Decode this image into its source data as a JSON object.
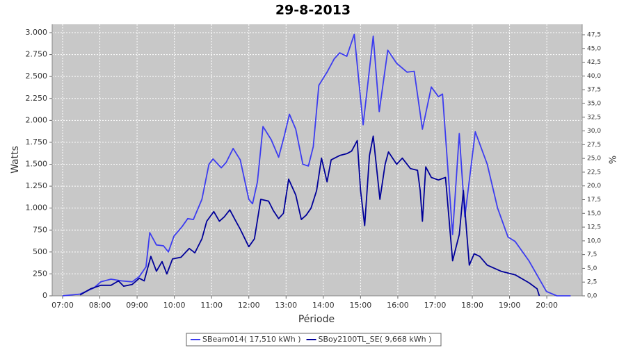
{
  "chart_data": {
    "type": "line",
    "title": "29-8-2013",
    "xlabel": "Période",
    "ylabel": "Watts",
    "y2label": "%",
    "xlim": [
      6.72,
      20.95
    ],
    "xticks": [
      {
        "value": 7,
        "label": "07:00"
      },
      {
        "value": 8,
        "label": "08:00"
      },
      {
        "value": 9,
        "label": "09:00"
      },
      {
        "value": 10,
        "label": "10:00"
      },
      {
        "value": 11,
        "label": "11:00"
      },
      {
        "value": 12,
        "label": "12:00"
      },
      {
        "value": 13,
        "label": "13:00"
      },
      {
        "value": 14,
        "label": "14:00"
      },
      {
        "value": 15,
        "label": "15:00"
      },
      {
        "value": 16,
        "label": "16:00"
      },
      {
        "value": 17,
        "label": "17:00"
      },
      {
        "value": 18,
        "label": "18:00"
      },
      {
        "value": 19,
        "label": "19:00"
      },
      {
        "value": 20,
        "label": "20:00"
      }
    ],
    "ylim": [
      0,
      3095
    ],
    "yticks": [
      0,
      250,
      500,
      750,
      {
        "value": 1000,
        "label": "1.000"
      },
      {
        "value": 1250,
        "label": "1.250"
      },
      {
        "value": 1500,
        "label": "1.500"
      },
      {
        "value": 1750,
        "label": "1.750"
      },
      {
        "value": 2000,
        "label": "2.000"
      },
      {
        "value": 2250,
        "label": "2.250"
      },
      {
        "value": 2500,
        "label": "2.500"
      },
      {
        "value": 2750,
        "label": "2.750"
      },
      {
        "value": 3000,
        "label": "3.000"
      }
    ],
    "y2lim": [
      0,
      49.4
    ],
    "y2ticks": [
      {
        "value": 0,
        "label": "0,0"
      },
      {
        "value": 2.5,
        "label": "2,5"
      },
      {
        "value": 5,
        "label": "5,0"
      },
      {
        "value": 7.5,
        "label": "7,5"
      },
      {
        "value": 10,
        "label": "10,0"
      },
      {
        "value": 12.5,
        "label": "12,5"
      },
      {
        "value": 15,
        "label": "15,0"
      },
      {
        "value": 17.5,
        "label": "17,5"
      },
      {
        "value": 20,
        "label": "20,0"
      },
      {
        "value": 22.5,
        "label": "22,5"
      },
      {
        "value": 25,
        "label": "25,0"
      },
      {
        "value": 27.5,
        "label": "27,5"
      },
      {
        "value": 30,
        "label": "30,0"
      },
      {
        "value": 32.5,
        "label": "32,5"
      },
      {
        "value": 35,
        "label": "35,0"
      },
      {
        "value": 37.5,
        "label": "37,5"
      },
      {
        "value": 40,
        "label": "40,0"
      },
      {
        "value": 42.5,
        "label": "42,5"
      },
      {
        "value": 45,
        "label": "45,0"
      },
      {
        "value": 47.5,
        "label": "47,5"
      }
    ],
    "grid": true,
    "legend": "bottom",
    "series": [
      {
        "name": "SBeam014( 17,510 kWh )",
        "color": "#3c3cf0",
        "x": [
          7.0,
          7.47,
          7.84,
          8.03,
          8.3,
          8.59,
          8.87,
          9.06,
          9.24,
          9.34,
          9.52,
          9.71,
          9.84,
          9.99,
          10.21,
          10.36,
          10.51,
          10.74,
          10.93,
          11.04,
          11.26,
          11.39,
          11.58,
          11.77,
          12.0,
          12.1,
          12.23,
          12.38,
          12.6,
          12.8,
          12.95,
          13.09,
          13.26,
          13.45,
          13.6,
          13.73,
          13.88,
          14.1,
          14.29,
          14.44,
          14.63,
          14.83,
          15.07,
          15.34,
          15.5,
          15.73,
          15.97,
          16.25,
          16.44,
          16.66,
          16.9,
          17.09,
          17.2,
          17.47,
          17.65,
          17.8,
          18.08,
          18.4,
          18.68,
          18.96,
          19.15,
          19.52,
          19.99,
          20.27,
          20.64
        ],
        "values": [
          0,
          20,
          90,
          160,
          190,
          170,
          160,
          220,
          330,
          720,
          580,
          570,
          500,
          680,
          790,
          880,
          870,
          1100,
          1500,
          1560,
          1460,
          1520,
          1680,
          1550,
          1100,
          1050,
          1300,
          1930,
          1780,
          1580,
          1820,
          2070,
          1900,
          1500,
          1480,
          1700,
          2400,
          2550,
          2700,
          2770,
          2730,
          2980,
          1950,
          2960,
          2100,
          2800,
          2650,
          2550,
          2560,
          1900,
          2380,
          2270,
          2300,
          700,
          1850,
          900,
          1870,
          1500,
          1000,
          670,
          620,
          400,
          50,
          0,
          0
        ]
      },
      {
        "name": "SBoy2100TL_SE( 9,668 kWh )",
        "color": "#000099",
        "x": [
          7.47,
          7.75,
          8.03,
          8.3,
          8.5,
          8.64,
          8.87,
          9.06,
          9.19,
          9.37,
          9.52,
          9.67,
          9.8,
          9.95,
          10.18,
          10.4,
          10.55,
          10.74,
          10.87,
          11.06,
          11.21,
          11.34,
          11.49,
          11.64,
          11.77,
          12.0,
          12.15,
          12.32,
          12.53,
          12.66,
          12.8,
          12.93,
          13.07,
          13.26,
          13.41,
          13.54,
          13.67,
          13.82,
          13.95,
          14.1,
          14.21,
          14.44,
          14.63,
          14.76,
          14.91,
          15.0,
          15.11,
          15.24,
          15.34,
          15.52,
          15.66,
          15.75,
          15.97,
          16.12,
          16.34,
          16.53,
          16.6,
          16.66,
          16.75,
          16.9,
          17.09,
          17.28,
          17.47,
          17.65,
          17.76,
          17.92,
          18.05,
          18.2,
          18.4,
          18.77,
          19.15,
          19.52,
          19.74,
          19.8
        ],
        "values": [
          10,
          80,
          120,
          120,
          170,
          110,
          130,
          200,
          170,
          450,
          280,
          390,
          250,
          420,
          440,
          540,
          490,
          650,
          850,
          960,
          850,
          900,
          980,
          860,
          760,
          560,
          650,
          1100,
          1080,
          970,
          880,
          940,
          1330,
          1150,
          870,
          920,
          1000,
          1200,
          1570,
          1300,
          1550,
          1600,
          1620,
          1650,
          1770,
          1200,
          800,
          1600,
          1820,
          1100,
          1500,
          1640,
          1500,
          1570,
          1450,
          1430,
          1200,
          850,
          1470,
          1350,
          1320,
          1350,
          400,
          700,
          1200,
          350,
          480,
          450,
          350,
          280,
          240,
          150,
          80,
          0
        ]
      }
    ]
  }
}
